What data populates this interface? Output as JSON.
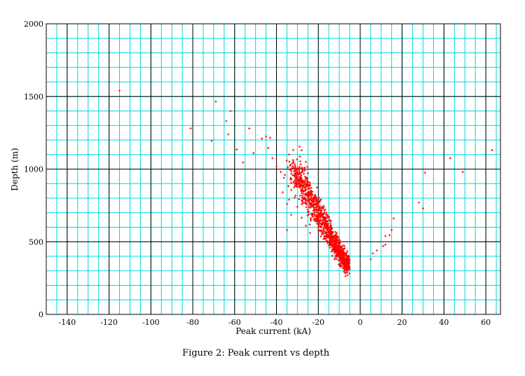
{
  "chart_data": {
    "type": "scatter",
    "title": "",
    "caption": "Figure 2: Peak current vs depth",
    "xlabel": "Peak current (kA)",
    "ylabel": "Depth (m)",
    "xlim": [
      -150,
      67
    ],
    "ylim": [
      0,
      2000
    ],
    "x_ticks": [
      -140,
      -120,
      -100,
      -80,
      -60,
      -40,
      -20,
      0,
      20,
      40,
      60
    ],
    "x_tick_labels": [
      "-140",
      "-120",
      "-100",
      "-80",
      "-60",
      "-40",
      "-20",
      "0",
      "20",
      "40",
      "60"
    ],
    "y_ticks": [
      0,
      500,
      1000,
      1500,
      2000
    ],
    "y_tick_labels": [
      "0",
      "500",
      "1000",
      "1500",
      "2000"
    ],
    "grid": true,
    "colors": {
      "major_grid": "#000000",
      "minor_grid": "#00d8d8",
      "points": "#ff0000"
    },
    "marker": "+",
    "cluster": {
      "description_only": false,
      "core": {
        "x_center": -13,
        "y_center": 640,
        "count": 1100
      }
    },
    "series": [
      {
        "points": [
          [
            -115,
            1540
          ],
          [
            -69,
            1465
          ],
          [
            -62,
            1400
          ],
          [
            -64,
            1330
          ],
          [
            -81,
            1280
          ],
          [
            -53,
            1280
          ],
          [
            -63,
            1240
          ],
          [
            -45,
            1225
          ],
          [
            -47,
            1210
          ],
          [
            -43,
            1215
          ],
          [
            -71,
            1195
          ],
          [
            -59,
            1135
          ],
          [
            -44,
            1145
          ],
          [
            -51,
            1110
          ],
          [
            -42,
            1075
          ],
          [
            -56,
            1045
          ],
          [
            -29,
            1155
          ],
          [
            -28,
            1130
          ],
          [
            -34,
            1100
          ],
          [
            -26,
            1050
          ],
          [
            -31,
            1020
          ],
          [
            -40,
            1020
          ],
          [
            -38,
            980
          ],
          [
            -36,
            960
          ],
          [
            -33,
            905
          ],
          [
            -37,
            840
          ],
          [
            -34,
            790
          ],
          [
            -35,
            760
          ],
          [
            -33,
            685
          ],
          [
            -35,
            580
          ],
          [
            -30,
            740
          ],
          [
            -28,
            665
          ],
          [
            -26,
            610
          ],
          [
            -24,
            560
          ],
          [
            -12,
            390
          ],
          [
            -8,
            430
          ],
          [
            -6,
            270
          ],
          [
            -5,
            310
          ],
          [
            5,
            380
          ],
          [
            6,
            420
          ],
          [
            8,
            440
          ],
          [
            11,
            470
          ],
          [
            12,
            480
          ],
          [
            12,
            540
          ],
          [
            14,
            545
          ],
          [
            15,
            580
          ],
          [
            16,
            660
          ],
          [
            28,
            770
          ],
          [
            30,
            730
          ],
          [
            31,
            975
          ],
          [
            43,
            1075
          ],
          [
            49,
            980
          ],
          [
            63,
            1130
          ]
        ]
      }
    ]
  }
}
